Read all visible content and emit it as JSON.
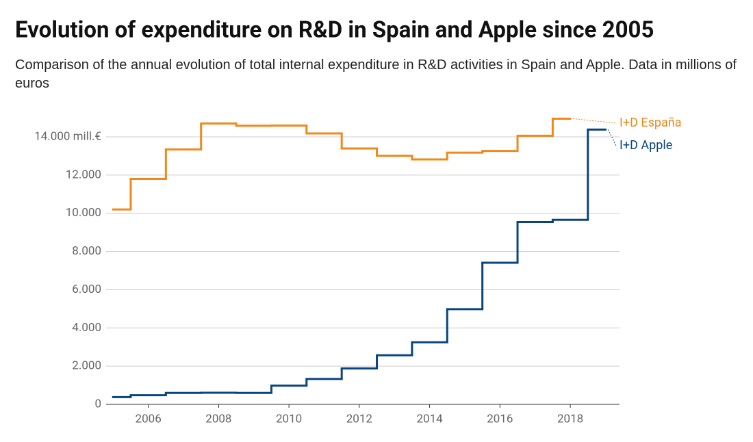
{
  "chart_data": {
    "type": "step",
    "step": "mid",
    "title": "Evolution of expenditure on R&D in Spain and Apple since 2005",
    "subtitle": "Comparison of the annual evolution of total internal expenditure in R&D activities in Spain and Apple. Data in millions of euros",
    "x": [
      2005,
      2006,
      2007,
      2008,
      2009,
      2010,
      2011,
      2012,
      2013,
      2014,
      2015,
      2016,
      2017,
      2018,
      2019
    ],
    "series": [
      {
        "name": "I+D España",
        "color": "#f0881a",
        "values": [
          10200,
          11800,
          13340,
          14700,
          14580,
          14590,
          14180,
          13390,
          13010,
          12820,
          13170,
          13260,
          14060,
          14950,
          null
        ]
      },
      {
        "name": "I+D Apple",
        "color": "#08457e",
        "values": [
          380,
          480,
          600,
          610,
          600,
          980,
          1330,
          1880,
          2570,
          3250,
          4980,
          7410,
          9540,
          9660,
          14380
        ]
      }
    ],
    "xlim": [
      2004.8,
      2019.4
    ],
    "xticks": [
      2006,
      2008,
      2010,
      2012,
      2014,
      2016,
      2018
    ],
    "ylim": [
      0,
      14000
    ],
    "yticks": [
      0,
      {
        "value": 2000,
        "label": "2.000"
      },
      {
        "value": 4000,
        "label": "4.000"
      },
      {
        "value": 6000,
        "label": "6.000"
      },
      {
        "value": 8000,
        "label": "8.000"
      },
      {
        "value": 10000,
        "label": "10.000"
      },
      {
        "value": 12000,
        "label": "12.000"
      },
      {
        "value": 14000,
        "label": "14.000 mill.€"
      }
    ],
    "grid": true
  }
}
